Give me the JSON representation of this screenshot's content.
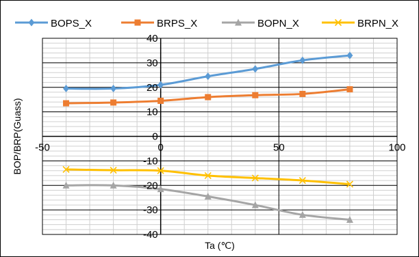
{
  "chart_data": {
    "type": "line",
    "title": "",
    "xlabel": "Ta (℃)",
    "ylabel": "BOP/BRP(Guass)",
    "xlim": [
      -50,
      100
    ],
    "ylim": [
      -40,
      40
    ],
    "x_ticks": [
      -50,
      0,
      50,
      100
    ],
    "y_ticks": [
      -40,
      -30,
      -20,
      -10,
      0,
      10,
      20,
      30,
      40
    ],
    "grid": true,
    "legend_position": "top",
    "x": [
      -40,
      -20,
      0,
      20,
      40,
      60,
      80
    ],
    "series": [
      {
        "name": "BOPS_X",
        "color": "#5b9bd5",
        "marker": "diamond",
        "values": [
          19.5,
          19.5,
          21,
          24.5,
          27.5,
          31,
          33
        ]
      },
      {
        "name": "BRPS_X",
        "color": "#ed7d31",
        "marker": "square",
        "values": [
          13.5,
          13.8,
          14.5,
          16,
          16.8,
          17.3,
          19.2
        ]
      },
      {
        "name": "BOPN_X",
        "color": "#a5a5a5",
        "marker": "triangle",
        "values": [
          -20,
          -20,
          -21.5,
          -24.5,
          -28,
          -32,
          -34
        ]
      },
      {
        "name": "BRPN_X",
        "color": "#ffc000",
        "marker": "x",
        "values": [
          -13.5,
          -13.8,
          -14,
          -16,
          -17,
          -18,
          -19.5
        ]
      }
    ]
  }
}
